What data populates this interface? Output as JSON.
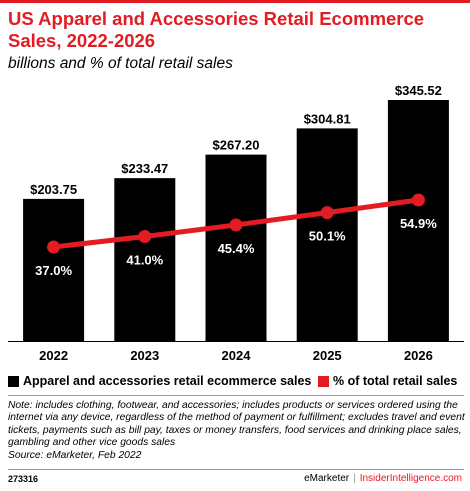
{
  "header": {
    "title": "US Apparel and Accessories Retail Ecommerce Sales, 2022-2026",
    "subtitle": "billions and % of total retail sales"
  },
  "colors": {
    "accent": "#e31b23",
    "bar": "#000000",
    "line": "#e31b23"
  },
  "chart_data": {
    "type": "bar",
    "categories": [
      "2022",
      "2023",
      "2024",
      "2025",
      "2026"
    ],
    "series": [
      {
        "name": "Apparel and accessories retail ecommerce sales",
        "type": "bar",
        "values": [
          203.75,
          233.47,
          267.2,
          304.81,
          345.52
        ],
        "labels": [
          "$203.75",
          "$233.47",
          "$267.20",
          "$304.81",
          "$345.52"
        ]
      },
      {
        "name": "% of total retail sales",
        "type": "line",
        "values": [
          37.0,
          41.0,
          45.4,
          50.1,
          54.9
        ],
        "labels": [
          "37.0%",
          "41.0%",
          "45.4%",
          "50.1%",
          "54.9%"
        ]
      }
    ],
    "grid": false,
    "legend_position": "bottom"
  },
  "legend": {
    "bar_label": "Apparel and accessories retail ecommerce sales",
    "line_label": "% of total retail sales"
  },
  "note": "Note: includes clothing, footwear, and accessories; includes products or services ordered using the internet via any device, regardless of the method of payment or fulfillment; excludes travel and event tickets, payments such as bill pay, taxes or money transfers, food services and drinking place sales, gambling and other vice goods sales",
  "source": "Source: eMarketer, Feb 2022",
  "footer": {
    "chart_id": "273316",
    "brand_left": "eMarketer",
    "brand_separator": "|",
    "brand_right": "InsiderIntelligence.com"
  }
}
